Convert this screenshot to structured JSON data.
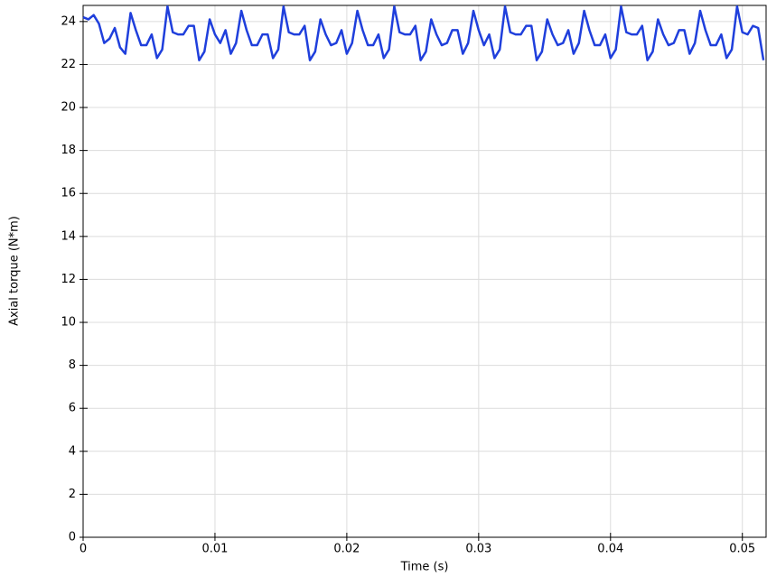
{
  "chart_data": {
    "type": "line",
    "xlabel": "Time (s)",
    "ylabel": "Axial torque (N*m)",
    "color": "#1f3fdc",
    "grid": true,
    "xlim": [
      0,
      0.0518
    ],
    "ylim": [
      0,
      24.75
    ],
    "xticks": [
      0,
      0.01,
      0.02,
      0.03,
      0.04,
      0.05
    ],
    "yticks": [
      0,
      2,
      4,
      6,
      8,
      10,
      12,
      14,
      16,
      18,
      20,
      22,
      24
    ],
    "x": [
      0,
      0.0004,
      0.0008,
      0.0012,
      0.0016,
      0.002,
      0.0024,
      0.0028,
      0.0032,
      0.0036,
      0.004,
      0.0044,
      0.0048,
      0.0052,
      0.0056,
      0.006,
      0.0064,
      0.0068,
      0.0072,
      0.0076,
      0.008,
      0.0084,
      0.0088,
      0.0092,
      0.0096,
      0.01,
      0.0104,
      0.0108,
      0.0112,
      0.0116,
      0.012,
      0.0124,
      0.0128,
      0.0132,
      0.0136,
      0.014,
      0.0144,
      0.0148,
      0.0152,
      0.0156,
      0.016,
      0.0164,
      0.0168,
      0.0172,
      0.0176,
      0.018,
      0.0184,
      0.0188,
      0.0192,
      0.0196,
      0.02,
      0.0204,
      0.0208,
      0.0212,
      0.0216,
      0.022,
      0.0224,
      0.0228,
      0.0232,
      0.0236,
      0.024,
      0.0244,
      0.0248,
      0.0252,
      0.0256,
      0.026,
      0.0264,
      0.0268,
      0.0272,
      0.0276,
      0.028,
      0.0284,
      0.0288,
      0.0292,
      0.0296,
      0.03,
      0.0304,
      0.0308,
      0.0312,
      0.0316,
      0.032,
      0.0324,
      0.0328,
      0.0332,
      0.0336,
      0.034,
      0.0344,
      0.0348,
      0.0352,
      0.0356,
      0.036,
      0.0364,
      0.0368,
      0.0372,
      0.0376,
      0.038,
      0.0384,
      0.0388,
      0.0392,
      0.0396,
      0.04,
      0.0404,
      0.0408,
      0.0412,
      0.0416,
      0.042,
      0.0424,
      0.0428,
      0.0432,
      0.0436,
      0.044,
      0.0444,
      0.0448,
      0.0452,
      0.0456,
      0.046,
      0.0464,
      0.0468,
      0.0472,
      0.0476,
      0.048,
      0.0484,
      0.0488,
      0.0492,
      0.0496,
      0.05,
      0.0504,
      0.0508,
      0.0512,
      0.0516
    ],
    "values": [
      24.2,
      24.1,
      24.3,
      23.9,
      23.0,
      23.2,
      23.7,
      22.8,
      22.5,
      24.4,
      23.6,
      22.9,
      22.9,
      23.4,
      22.3,
      22.7,
      24.7,
      23.5,
      23.4,
      23.4,
      23.8,
      23.8,
      22.2,
      22.6,
      24.1,
      23.4,
      23.0,
      23.6,
      22.5,
      23.0,
      24.5,
      23.6,
      22.9,
      22.9,
      23.4,
      23.4,
      22.3,
      22.7,
      24.7,
      23.5,
      23.4,
      23.4,
      23.8,
      22.2,
      22.6,
      24.1,
      23.4,
      22.9,
      23.0,
      23.6,
      22.5,
      23.0,
      24.5,
      23.6,
      22.9,
      22.9,
      23.4,
      22.3,
      22.7,
      24.7,
      23.5,
      23.4,
      23.4,
      23.8,
      22.2,
      22.6,
      24.1,
      23.4,
      22.9,
      23.0,
      23.6,
      23.6,
      22.5,
      23.0,
      24.5,
      23.6,
      22.9,
      23.4,
      22.3,
      22.7,
      24.7,
      23.5,
      23.4,
      23.4,
      23.8,
      23.8,
      22.2,
      22.6,
      24.1,
      23.4,
      22.9,
      23.0,
      23.6,
      22.5,
      23.0,
      24.5,
      23.6,
      22.9,
      22.9,
      23.4,
      22.3,
      22.7,
      24.7,
      23.5,
      23.4,
      23.4,
      23.8,
      22.2,
      22.6,
      24.1,
      23.4,
      22.9,
      23.0,
      23.6,
      23.6,
      22.5,
      23.0,
      24.5,
      23.6,
      22.9,
      22.9,
      23.4,
      22.3,
      22.7,
      24.7,
      23.5,
      23.4,
      23.8,
      23.7,
      22.2
    ]
  }
}
